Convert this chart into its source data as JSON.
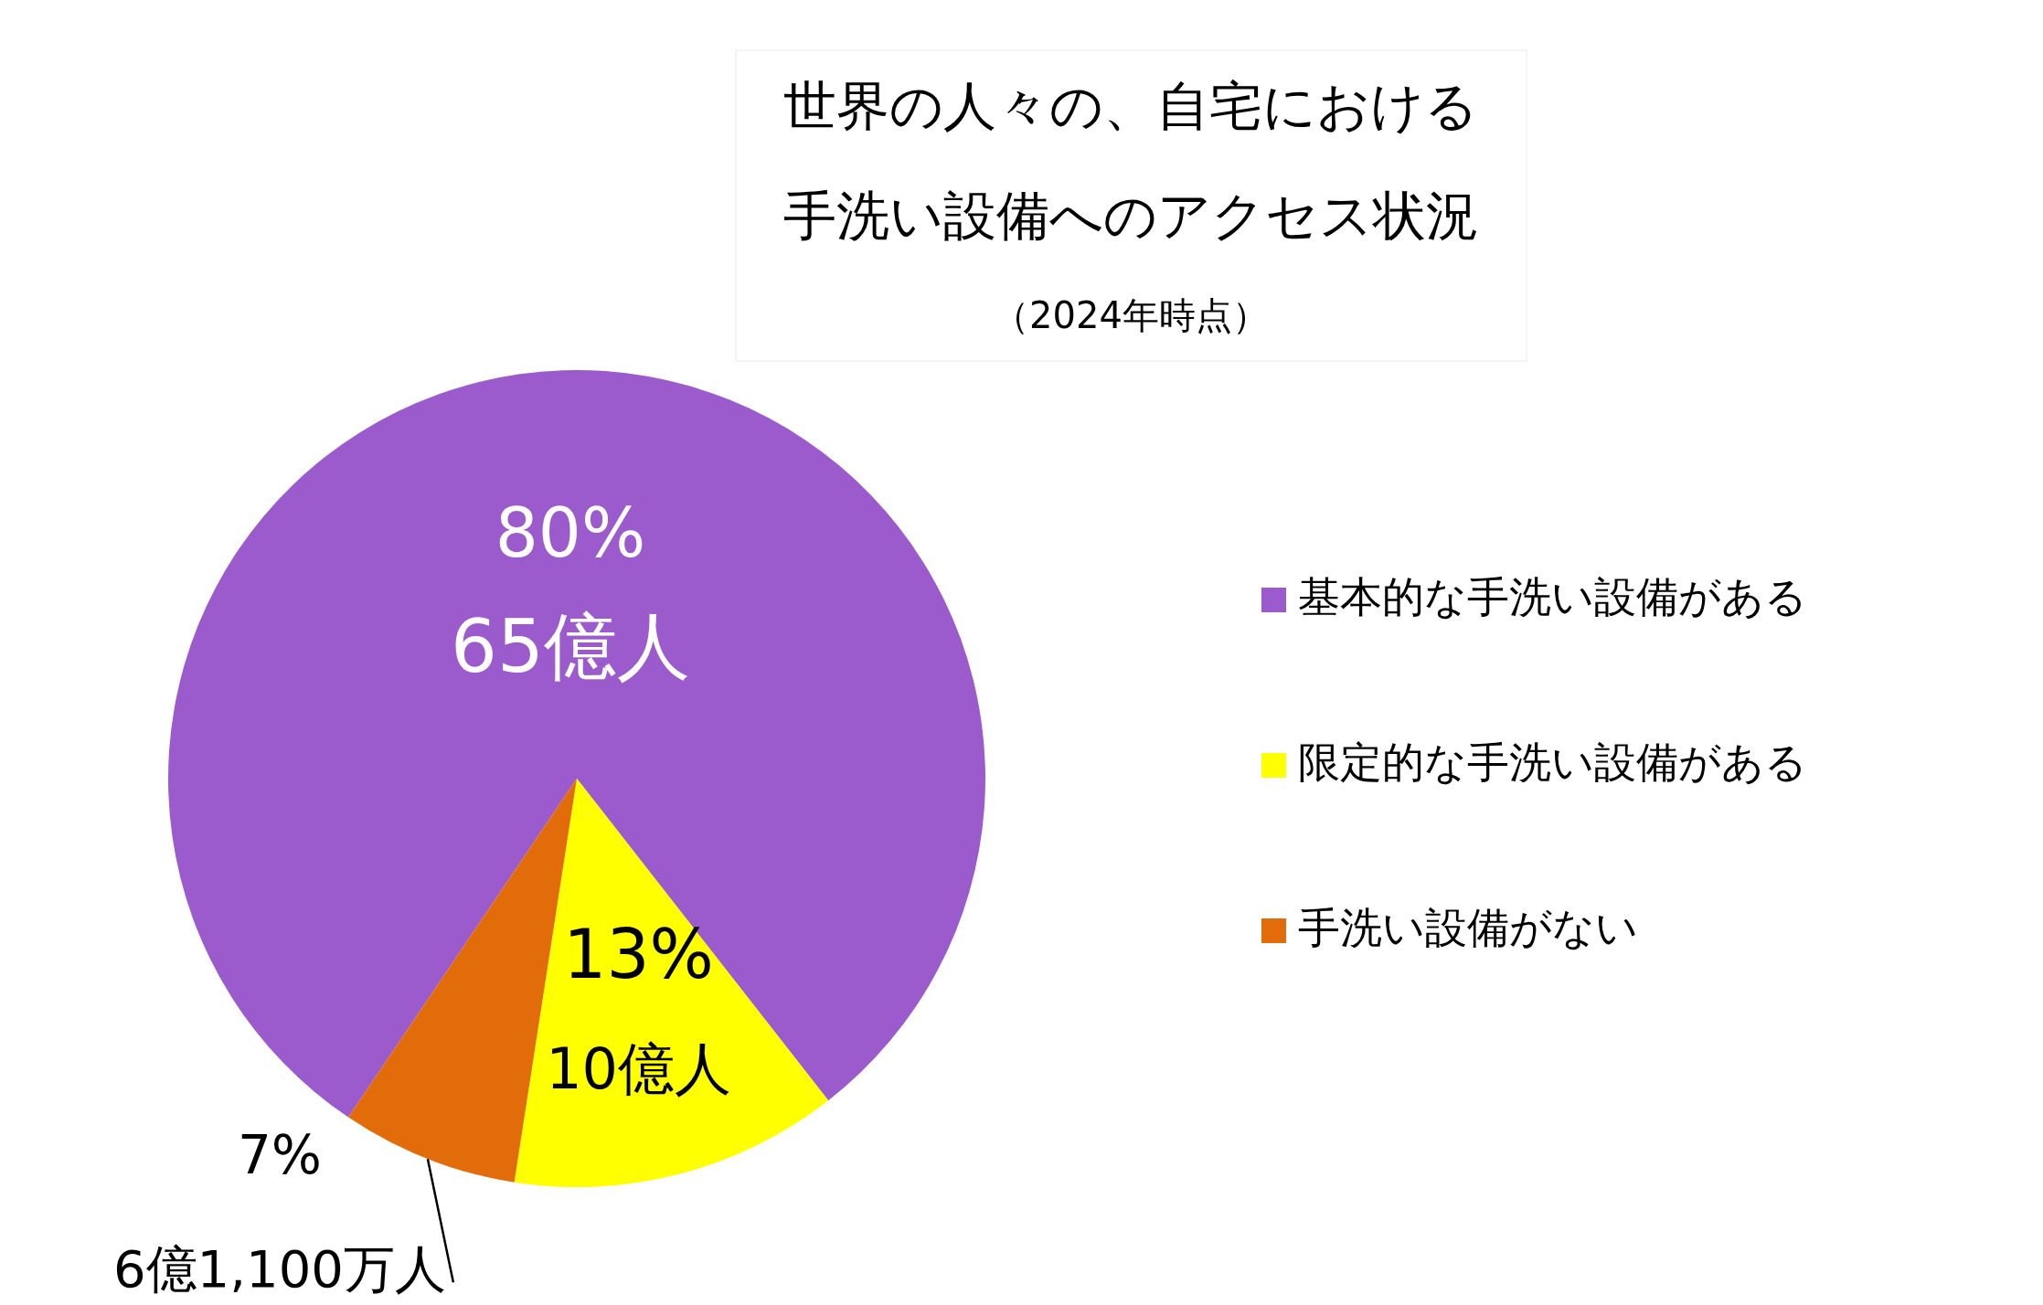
{
  "chart_data": {
    "type": "pie",
    "title": "世界の人々の、自宅における手洗い設備へのアクセス状況",
    "subtitle": "（2024年時点）",
    "categories": [
      "基本的な手洗い設備がある",
      "限定的な手洗い設備がある",
      "手洗い設備がない"
    ],
    "values": [
      80,
      13,
      7
    ],
    "colors": [
      "#9b5bcd",
      "#ffff00",
      "#e36c0a"
    ],
    "value_labels": [
      "80%\n65億人",
      "13%\n10億人",
      "7%\n6億1,100万人"
    ],
    "legend": "right"
  }
}
